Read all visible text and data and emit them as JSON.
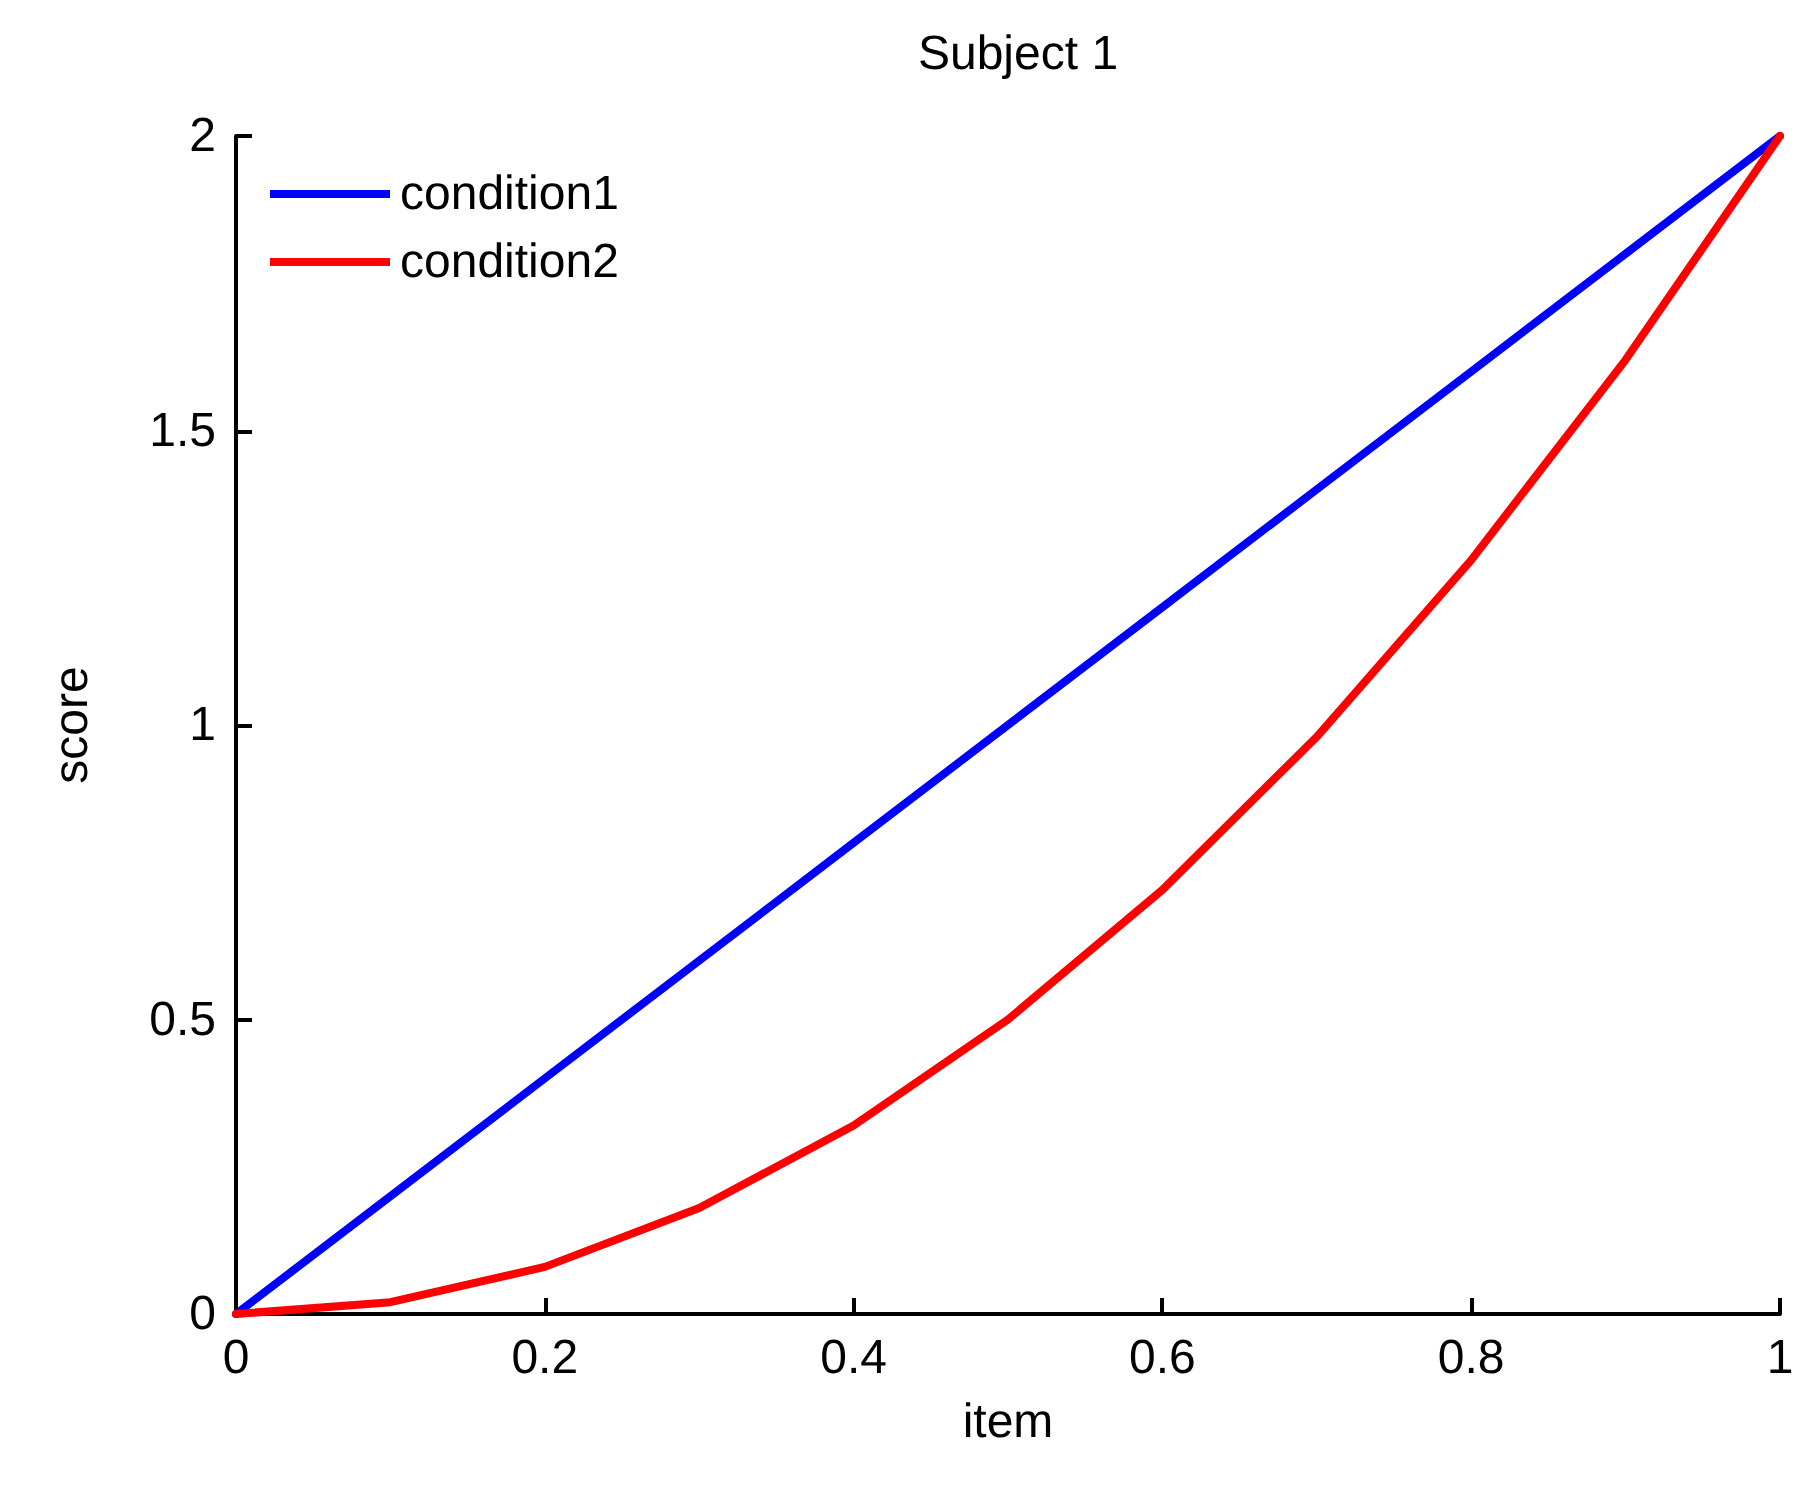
{
  "chart_data": {
    "type": "line",
    "title": "Subject 1",
    "xlabel": "item",
    "ylabel": "score",
    "x": [
      0,
      0.1,
      0.2,
      0.3,
      0.4,
      0.5,
      0.6,
      0.7,
      0.8,
      0.9,
      1
    ],
    "series": [
      {
        "name": "condition1",
        "color": "#0000ff",
        "values": [
          0,
          0.2,
          0.4,
          0.6,
          0.8,
          1,
          1.2,
          1.4,
          1.6,
          1.8,
          2
        ]
      },
      {
        "name": "condition2",
        "color": "#ff0000",
        "values": [
          0,
          0.02,
          0.08,
          0.18,
          0.32,
          0.5,
          0.72,
          0.98,
          1.28,
          1.62,
          2
        ]
      }
    ],
    "xlim": [
      0,
      1
    ],
    "xticks": [
      0,
      0.2,
      0.4,
      0.6,
      0.8,
      1
    ],
    "ylim": [
      0,
      2
    ],
    "yticks": [
      0,
      0.5,
      1,
      1.5,
      2
    ],
    "grid": false,
    "legend": "top left",
    "marker": "none",
    "line_style": "solid"
  }
}
